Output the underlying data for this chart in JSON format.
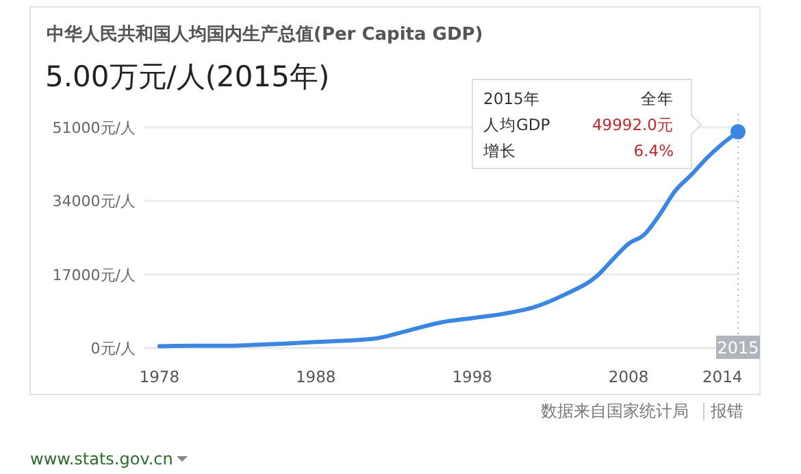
{
  "chart_data": {
    "type": "line",
    "title": "中华人民共和国人均国内生产总值(Per Capita GDP)",
    "subtitle": "5.00万元/人(2015年)",
    "x": [
      1978,
      1980,
      1982,
      1984,
      1986,
      1988,
      1990,
      1992,
      1994,
      1996,
      1998,
      2000,
      2002,
      2004,
      2006,
      2007,
      2008,
      2009,
      2010,
      2011,
      2012,
      2013,
      2014,
      2015
    ],
    "series": [
      {
        "type": "line",
        "color": "#3b86e0",
        "marker": "none",
        "values": [
          400,
          500,
          500,
          700,
          1000,
          1400,
          1700,
          2300,
          4100,
          5900,
          6900,
          7900,
          9500,
          12500,
          16700,
          20500,
          24100,
          26200,
          30900,
          36400,
          40000,
          43900,
          47200,
          49992
        ]
      },
      {
        "type": "scatter",
        "color": "#3b86e0",
        "marker": "circle",
        "x": [
          2015
        ],
        "values": [
          49992
        ]
      }
    ],
    "xlim": [
      1977,
      2015
    ],
    "xticks": [
      1978,
      1988,
      1998,
      2008,
      2014
    ],
    "ylim": [
      0,
      51000
    ],
    "yticks": [
      {
        "value": 0,
        "label": "0元/人"
      },
      {
        "value": 17000,
        "label": "17000元/人"
      },
      {
        "value": 34000,
        "label": "34000元/人"
      },
      {
        "value": 51000,
        "label": "51000元/人"
      }
    ],
    "grid": "y",
    "ref_lines": [
      {
        "axis": "x",
        "value": 2015,
        "label": "2015",
        "color": "#b0b4bb",
        "line_style": "dotted"
      }
    ],
    "annotations": [
      "数据来自国家统计局",
      "报错",
      "www.stats.gov.cn",
      "2015年",
      "全年",
      "人均GDP",
      "49992.0元",
      "增长",
      "6.4%"
    ]
  }
}
